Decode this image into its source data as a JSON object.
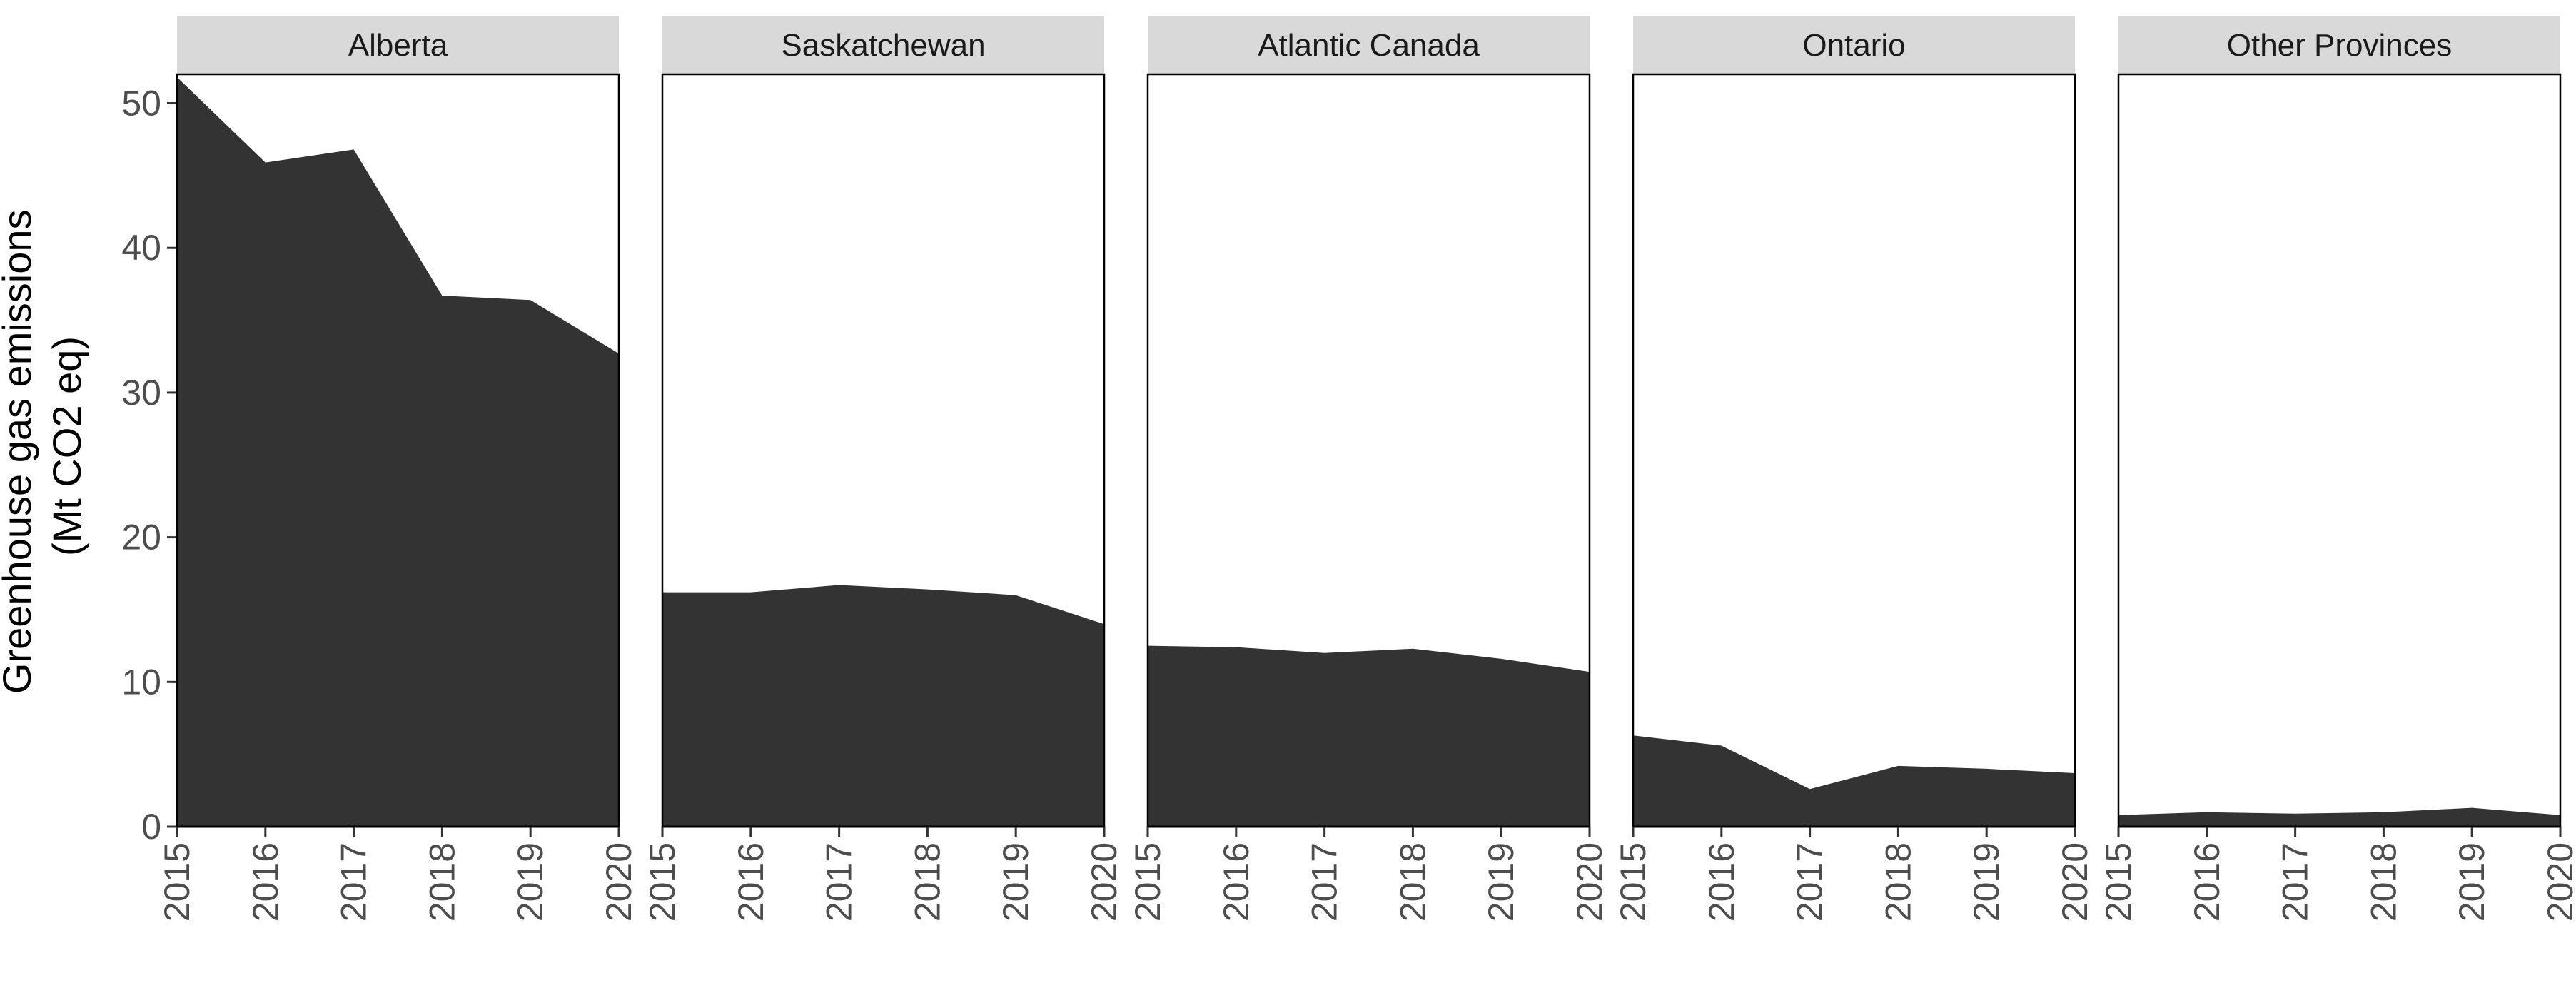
{
  "chart_data": {
    "type": "area",
    "facet_by": "region",
    "ylabel": [
      "Greenhouse gas emissions",
      "(Mt CO2 eq)"
    ],
    "xlabel": "",
    "x": [
      2015,
      2016,
      2017,
      2018,
      2019,
      2020
    ],
    "xlim": [
      2015,
      2020
    ],
    "ylim": [
      0,
      52
    ],
    "y_ticks": [
      0,
      10,
      20,
      30,
      40,
      50
    ],
    "grid": false,
    "fill_color": "#333333",
    "strip_color": "#d9d9d9",
    "series": [
      {
        "name": "Alberta",
        "values": [
          51.8,
          45.9,
          46.8,
          36.7,
          36.4,
          32.7
        ]
      },
      {
        "name": "Saskatchewan",
        "values": [
          16.2,
          16.2,
          16.7,
          16.4,
          16.0,
          14.0
        ]
      },
      {
        "name": "Atlantic Canada",
        "values": [
          12.5,
          12.4,
          12.0,
          12.3,
          11.6,
          10.7
        ]
      },
      {
        "name": "Ontario",
        "values": [
          6.3,
          5.6,
          2.6,
          4.2,
          4.0,
          3.7
        ]
      },
      {
        "name": "Other Provinces",
        "values": [
          0.8,
          1.0,
          0.9,
          1.0,
          1.3,
          0.8
        ]
      }
    ]
  }
}
